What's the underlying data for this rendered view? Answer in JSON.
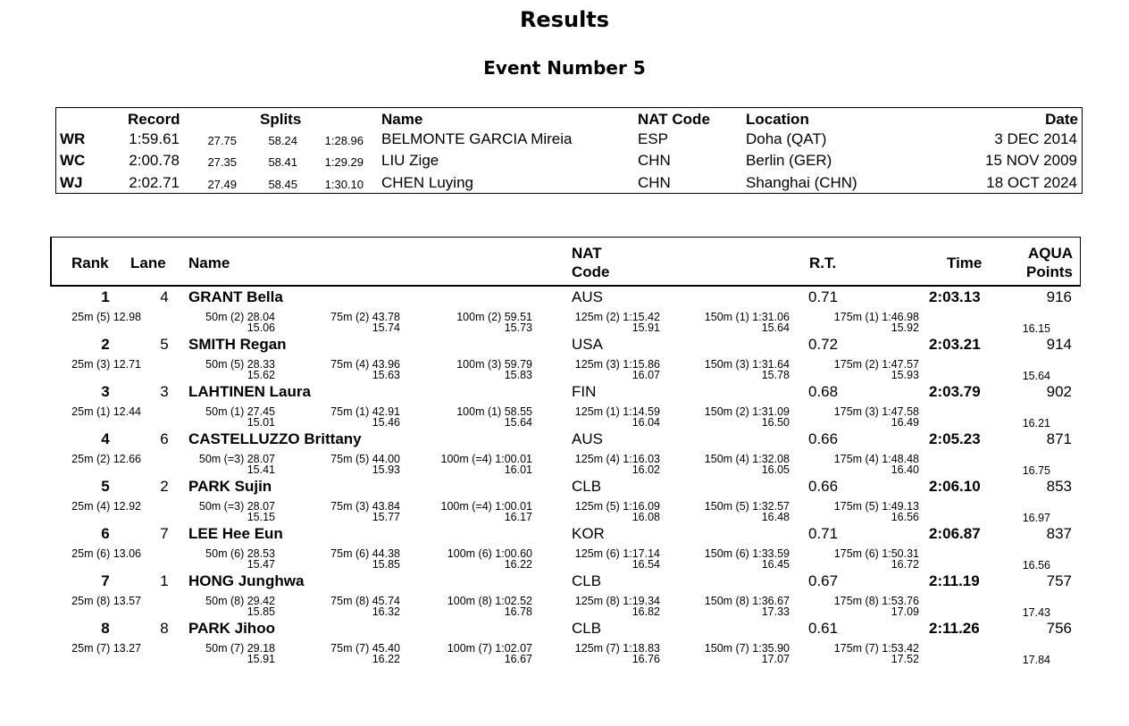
{
  "title": "Results",
  "subtitle": "Event Number 5",
  "records": {
    "headers": {
      "record": "Record",
      "splits": "Splits",
      "name": "Name",
      "nat": "NAT Code",
      "location": "Location",
      "date": "Date"
    },
    "rows": [
      {
        "code": "WR",
        "time": "1:59.61",
        "s1": "27.75",
        "s2": "58.24",
        "s3": "1:28.96",
        "name": "BELMONTE GARCIA Mireia",
        "nat": "ESP",
        "location": "Doha (QAT)",
        "date": "3 DEC 2014"
      },
      {
        "code": "WC",
        "time": "2:00.78",
        "s1": "27.35",
        "s2": "58.41",
        "s3": "1:29.29",
        "name": "LIU Zige",
        "nat": "CHN",
        "location": "Berlin (GER)",
        "date": "15 NOV 2009"
      },
      {
        "code": "WJ",
        "time": "2:02.71",
        "s1": "27.49",
        "s2": "58.45",
        "s3": "1:30.10",
        "name": "CHEN Luying",
        "nat": "CHN",
        "location": "Shanghai (CHN)",
        "date": "18 OCT 2024"
      }
    ]
  },
  "results": {
    "headers": {
      "rank": "Rank",
      "lane": "Lane",
      "name": "Name",
      "nat1": "NAT",
      "nat2": "Code",
      "rt": "R.T.",
      "time": "Time",
      "points1": "AQUA",
      "points2": "Points"
    },
    "rows": [
      {
        "rank": "1",
        "lane": "4",
        "name": "GRANT Bella",
        "nat": "AUS",
        "rt": "0.71",
        "time": "2:03.13",
        "points": "916",
        "splits": [
          {
            "label": "25m  (5) 12.98",
            "sub": ""
          },
          {
            "label": "50m  (2) 28.04",
            "sub": "15.06"
          },
          {
            "label": "75m  (2) 43.78",
            "sub": "15.74"
          },
          {
            "label": "100m  (2) 59.51",
            "sub": "15.73"
          },
          {
            "label": "125m  (2) 1:15.42",
            "sub": "15.91"
          },
          {
            "label": "150m  (1) 1:31.06",
            "sub": "15.64"
          },
          {
            "label": "175m  (1) 1:46.98",
            "sub": "15.92"
          },
          {
            "label": "",
            "sub": "16.15"
          }
        ]
      },
      {
        "rank": "2",
        "lane": "5",
        "name": "SMITH Regan",
        "nat": "USA",
        "rt": "0.72",
        "time": "2:03.21",
        "points": "914",
        "splits": [
          {
            "label": "25m  (3) 12.71",
            "sub": ""
          },
          {
            "label": "50m  (5) 28.33",
            "sub": "15.62"
          },
          {
            "label": "75m  (4) 43.96",
            "sub": "15.63"
          },
          {
            "label": "100m  (3) 59.79",
            "sub": "15.83"
          },
          {
            "label": "125m  (3) 1:15.86",
            "sub": "16.07"
          },
          {
            "label": "150m  (3) 1:31.64",
            "sub": "15.78"
          },
          {
            "label": "175m  (2) 1:47.57",
            "sub": "15.93"
          },
          {
            "label": "",
            "sub": "15.64"
          }
        ]
      },
      {
        "rank": "3",
        "lane": "3",
        "name": "LAHTINEN Laura",
        "nat": "FIN",
        "rt": "0.68",
        "time": "2:03.79",
        "points": "902",
        "splits": [
          {
            "label": "25m  (1) 12.44",
            "sub": ""
          },
          {
            "label": "50m  (1) 27.45",
            "sub": "15.01"
          },
          {
            "label": "75m  (1) 42.91",
            "sub": "15.46"
          },
          {
            "label": "100m  (1) 58.55",
            "sub": "15.64"
          },
          {
            "label": "125m  (1) 1:14.59",
            "sub": "16.04"
          },
          {
            "label": "150m  (2) 1:31.09",
            "sub": "16.50"
          },
          {
            "label": "175m  (3) 1:47.58",
            "sub": "16.49"
          },
          {
            "label": "",
            "sub": "16.21"
          }
        ]
      },
      {
        "rank": "4",
        "lane": "6",
        "name": "CASTELLUZZO Brittany",
        "nat": "AUS",
        "rt": "0.66",
        "time": "2:05.23",
        "points": "871",
        "splits": [
          {
            "label": "25m  (2) 12.66",
            "sub": ""
          },
          {
            "label": "50m  (=3) 28.07",
            "sub": "15.41"
          },
          {
            "label": "75m  (5) 44.00",
            "sub": "15.93"
          },
          {
            "label": "100m  (=4) 1:00.01",
            "sub": "16.01"
          },
          {
            "label": "125m  (4) 1:16.03",
            "sub": "16.02"
          },
          {
            "label": "150m  (4) 1:32.08",
            "sub": "16.05"
          },
          {
            "label": "175m  (4) 1:48.48",
            "sub": "16.40"
          },
          {
            "label": "",
            "sub": "16.75"
          }
        ]
      },
      {
        "rank": "5",
        "lane": "2",
        "name": "PARK Sujin",
        "nat": "CLB",
        "rt": "0.66",
        "time": "2:06.10",
        "points": "853",
        "splits": [
          {
            "label": "25m  (4) 12.92",
            "sub": ""
          },
          {
            "label": "50m  (=3) 28.07",
            "sub": "15.15"
          },
          {
            "label": "75m  (3) 43.84",
            "sub": "15.77"
          },
          {
            "label": "100m  (=4) 1:00.01",
            "sub": "16.17"
          },
          {
            "label": "125m  (5) 1:16.09",
            "sub": "16.08"
          },
          {
            "label": "150m  (5) 1:32.57",
            "sub": "16.48"
          },
          {
            "label": "175m  (5) 1:49.13",
            "sub": "16.56"
          },
          {
            "label": "",
            "sub": "16.97"
          }
        ]
      },
      {
        "rank": "6",
        "lane": "7",
        "name": "LEE Hee Eun",
        "nat": "KOR",
        "rt": "0.71",
        "time": "2:06.87",
        "points": "837",
        "splits": [
          {
            "label": "25m  (6) 13.06",
            "sub": ""
          },
          {
            "label": "50m  (6) 28.53",
            "sub": "15.47"
          },
          {
            "label": "75m  (6) 44.38",
            "sub": "15.85"
          },
          {
            "label": "100m  (6) 1:00.60",
            "sub": "16.22"
          },
          {
            "label": "125m  (6) 1:17.14",
            "sub": "16.54"
          },
          {
            "label": "150m  (6) 1:33.59",
            "sub": "16.45"
          },
          {
            "label": "175m  (6) 1:50.31",
            "sub": "16.72"
          },
          {
            "label": "",
            "sub": "16.56"
          }
        ]
      },
      {
        "rank": "7",
        "lane": "1",
        "name": "HONG Junghwa",
        "nat": "CLB",
        "rt": "0.67",
        "time": "2:11.19",
        "points": "757",
        "splits": [
          {
            "label": "25m  (8) 13.57",
            "sub": ""
          },
          {
            "label": "50m  (8) 29.42",
            "sub": "15.85"
          },
          {
            "label": "75m  (8) 45.74",
            "sub": "16.32"
          },
          {
            "label": "100m  (8) 1:02.52",
            "sub": "16.78"
          },
          {
            "label": "125m  (8) 1:19.34",
            "sub": "16.82"
          },
          {
            "label": "150m  (8) 1:36.67",
            "sub": "17.33"
          },
          {
            "label": "175m  (8) 1:53.76",
            "sub": "17.09"
          },
          {
            "label": "",
            "sub": "17.43"
          }
        ]
      },
      {
        "rank": "8",
        "lane": "8",
        "name": "PARK Jihoo",
        "nat": "CLB",
        "rt": "0.61",
        "time": "2:11.26",
        "points": "756",
        "splits": [
          {
            "label": "25m  (7) 13.27",
            "sub": ""
          },
          {
            "label": "50m  (7) 29.18",
            "sub": "15.91"
          },
          {
            "label": "75m  (7) 45.40",
            "sub": "16.22"
          },
          {
            "label": "100m  (7) 1:02.07",
            "sub": "16.67"
          },
          {
            "label": "125m  (7) 1:18.83",
            "sub": "16.76"
          },
          {
            "label": "150m  (7) 1:35.90",
            "sub": "17.07"
          },
          {
            "label": "175m  (7) 1:53.42",
            "sub": "17.52"
          },
          {
            "label": "",
            "sub": "17.84"
          }
        ]
      }
    ]
  }
}
